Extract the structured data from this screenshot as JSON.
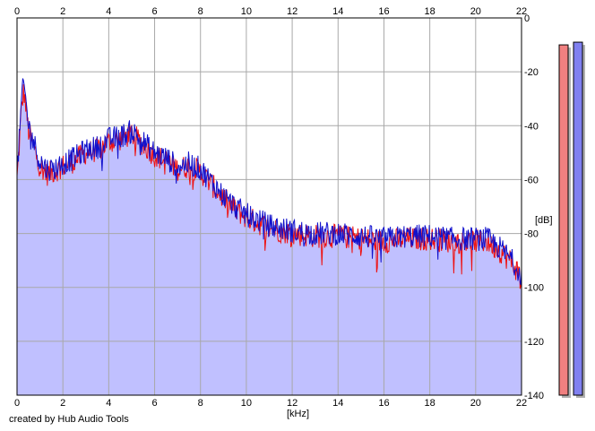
{
  "chart_data": {
    "type": "area",
    "title": "",
    "xlabel": "[kHz]",
    "ylabel": "[dB]",
    "xlim": [
      0,
      22
    ],
    "ylim": [
      -140,
      0
    ],
    "x_ticks": [
      "0",
      "2",
      "4",
      "6",
      "8",
      "10",
      "12",
      "14",
      "16",
      "18",
      "20",
      "22"
    ],
    "y_ticks": [
      "0",
      "-20",
      "-40",
      "-60",
      "-80",
      "-100",
      "-120",
      "-140"
    ],
    "grid": true,
    "series": [
      {
        "color": "#ee1111",
        "x": [
          0,
          0.1,
          0.2,
          0.3,
          0.5,
          0.8,
          1.0,
          1.3,
          1.6,
          2.0,
          2.5,
          3.0,
          3.5,
          4.0,
          4.5,
          5.0,
          5.5,
          6.0,
          6.5,
          7.0,
          7.5,
          8.0,
          8.5,
          9.0,
          9.5,
          10.0,
          11.0,
          12.0,
          13.0,
          14.0,
          15.0,
          16.0,
          17.0,
          18.0,
          19.0,
          20.0,
          20.5,
          21.0,
          21.5,
          22.0
        ],
        "values": [
          -60,
          -47,
          -33,
          -27,
          -42,
          -50,
          -55,
          -58,
          -57,
          -55,
          -53,
          -50,
          -49,
          -46,
          -45,
          -43,
          -47,
          -51,
          -53,
          -56,
          -55,
          -57,
          -62,
          -67,
          -71,
          -74,
          -78,
          -80,
          -81,
          -81,
          -82,
          -83,
          -82,
          -82,
          -83,
          -83,
          -83,
          -86,
          -90,
          -96
        ]
      },
      {
        "color": "#1111cc",
        "x": [
          0,
          0.1,
          0.2,
          0.3,
          0.5,
          0.8,
          1.0,
          1.3,
          1.6,
          2.0,
          2.5,
          3.0,
          3.5,
          4.0,
          4.5,
          5.0,
          5.5,
          6.0,
          6.5,
          7.0,
          7.5,
          8.0,
          8.5,
          9.0,
          9.5,
          10.0,
          11.0,
          12.0,
          13.0,
          14.0,
          15.0,
          16.0,
          17.0,
          18.0,
          19.0,
          20.0,
          20.5,
          21.0,
          21.5,
          22.0
        ],
        "values": [
          -58,
          -45,
          -30,
          -24,
          -40,
          -48,
          -53,
          -56,
          -56,
          -54,
          -52,
          -49,
          -48,
          -45,
          -44,
          -42,
          -46,
          -50,
          -52,
          -55,
          -54,
          -56,
          -61,
          -66,
          -70,
          -73,
          -77,
          -79,
          -80,
          -80,
          -81,
          -82,
          -81,
          -81,
          -82,
          -82,
          -82,
          -85,
          -89,
          -95
        ]
      }
    ],
    "level_meters": [
      {
        "color": "#f08080",
        "level_db": -10
      },
      {
        "color": "#8080f0",
        "level_db": -9
      }
    ]
  },
  "footer": {
    "credit": "created by Hub Audio Tools"
  }
}
